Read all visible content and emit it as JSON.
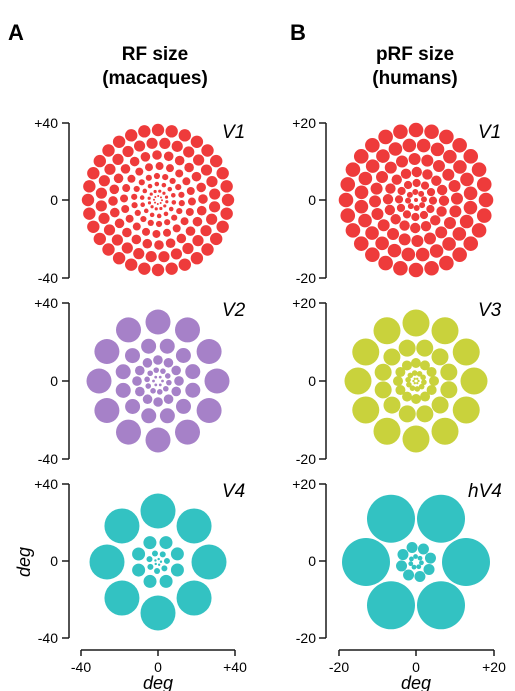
{
  "columns": [
    {
      "letter": "A",
      "title_line1": "RF size",
      "title_line2": "(macaques)",
      "y_ticks": [
        "+40",
        "0",
        "-40"
      ],
      "x_ticks": [
        "-40",
        "0",
        "+40"
      ],
      "x_axis_title": "deg",
      "y_axis_title": "deg",
      "panels": [
        {
          "area": "V1",
          "color": "#ee3b3b"
        },
        {
          "area": "V2",
          "color": "#a681c8"
        },
        {
          "area": "V4",
          "color": "#33c2c2"
        }
      ]
    },
    {
      "letter": "B",
      "title_line1": "pRF size",
      "title_line2": "(humans)",
      "y_ticks": [
        "+20",
        "0",
        "-20"
      ],
      "x_ticks": [
        "-20",
        "0",
        "+20"
      ],
      "x_axis_title": "deg",
      "panels": [
        {
          "area": "V1",
          "color": "#ee3b3b"
        },
        {
          "area": "V3",
          "color": "#c9d23c"
        },
        {
          "area": "hV4",
          "color": "#33c2c2"
        }
      ]
    }
  ]
}
